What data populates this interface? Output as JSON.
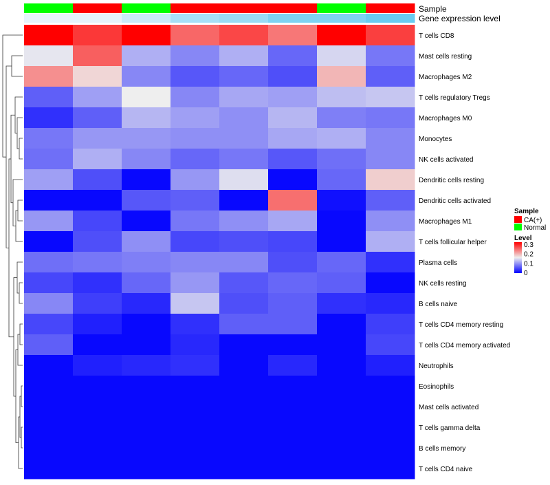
{
  "chart_data": {
    "type": "heatmap",
    "annotation_tracks": [
      "Sample",
      "Gene expression level"
    ],
    "rows": [
      "T cells CD8",
      "Mast cells resting",
      "Macrophages M2",
      "T cells regulatory  Tregs",
      "Macrophages M0",
      "Monocytes",
      "NK cells activated",
      "Dendritic cells resting",
      "Dendritic cells activated",
      "Macrophages M1",
      "T cells follicular helper",
      "Plasma cells",
      "NK cells resting",
      "B cells naive",
      "T cells CD4 memory resting",
      "T cells CD4 memory activated",
      "Neutrophils",
      "Eosinophils",
      "Mast cells activated",
      "T cells gamma delta",
      "B cells memory",
      "T cells CD4 naive"
    ],
    "sample_groups": [
      "Normal",
      "CA(+)",
      "Normal",
      "CA(+)",
      "CA(+)",
      "CA(+)",
      "Normal",
      "CA(+)"
    ],
    "expression_level": [
      0.0,
      0.0,
      0.2,
      0.45,
      0.55,
      0.75,
      0.75,
      0.9
    ],
    "values": [
      [
        0.3,
        0.265,
        0.3,
        0.235,
        0.255,
        0.225,
        0.3,
        0.26
      ],
      [
        0.145,
        0.24,
        0.11,
        0.085,
        0.11,
        0.065,
        0.135,
        0.075
      ],
      [
        0.21,
        0.165,
        0.085,
        0.055,
        0.065,
        0.05,
        0.185,
        0.06
      ],
      [
        0.06,
        0.1,
        0.15,
        0.085,
        0.105,
        0.1,
        0.12,
        0.125
      ],
      [
        0.03,
        0.06,
        0.115,
        0.1,
        0.09,
        0.115,
        0.08,
        0.075
      ],
      [
        0.075,
        0.095,
        0.095,
        0.09,
        0.09,
        0.105,
        0.11,
        0.085
      ],
      [
        0.07,
        0.11,
        0.085,
        0.065,
        0.075,
        0.055,
        0.07,
        0.085
      ],
      [
        0.1,
        0.05,
        0.005,
        0.095,
        0.14,
        0.005,
        0.065,
        0.17
      ],
      [
        0.005,
        0.005,
        0.055,
        0.06,
        0.005,
        0.23,
        0.01,
        0.06
      ],
      [
        0.095,
        0.045,
        0.005,
        0.075,
        0.09,
        0.105,
        0.005,
        0.09
      ],
      [
        0.005,
        0.05,
        0.09,
        0.045,
        0.05,
        0.045,
        0.005,
        0.11
      ],
      [
        0.07,
        0.075,
        0.08,
        0.085,
        0.085,
        0.05,
        0.065,
        0.03
      ],
      [
        0.045,
        0.03,
        0.065,
        0.095,
        0.055,
        0.065,
        0.06,
        0.005
      ],
      [
        0.085,
        0.04,
        0.025,
        0.125,
        0.05,
        0.06,
        0.03,
        0.025
      ],
      [
        0.045,
        0.02,
        0.005,
        0.03,
        0.06,
        0.06,
        0.005,
        0.04
      ],
      [
        0.06,
        0.005,
        0.005,
        0.025,
        0.005,
        0.005,
        0.005,
        0.045
      ],
      [
        0.005,
        0.02,
        0.025,
        0.03,
        0.005,
        0.025,
        0.005,
        0.02
      ],
      [
        0.005,
        0.005,
        0.005,
        0.005,
        0.005,
        0.005,
        0.005,
        0.005
      ],
      [
        0.005,
        0.005,
        0.005,
        0.005,
        0.005,
        0.005,
        0.005,
        0.005
      ],
      [
        0.005,
        0.005,
        0.005,
        0.005,
        0.005,
        0.005,
        0.005,
        0.005
      ],
      [
        0.005,
        0.005,
        0.005,
        0.005,
        0.005,
        0.005,
        0.005,
        0.005
      ],
      [
        0.005,
        0.005,
        0.005,
        0.005,
        0.005,
        0.005,
        0.005,
        0.005
      ]
    ],
    "color_scale": {
      "low": "#0000FF",
      "mid": "#EEEEEE",
      "high": "#FF0000",
      "min": 0,
      "mid_value": 0.15,
      "max": 0.3
    },
    "legend": {
      "placement": "right",
      "sample": {
        "title": "Sample",
        "entries": [
          {
            "label": "CA(+)",
            "color": "#FF0000"
          },
          {
            "label": "Normal",
            "color": "#00FF00"
          }
        ]
      },
      "level": {
        "title": "Level",
        "ticks": [
          "0.3",
          "0.2",
          "0.1",
          "0"
        ]
      }
    },
    "expression_colors": {
      "low": "#E6F4FC",
      "high": "#5BC8F0"
    }
  }
}
